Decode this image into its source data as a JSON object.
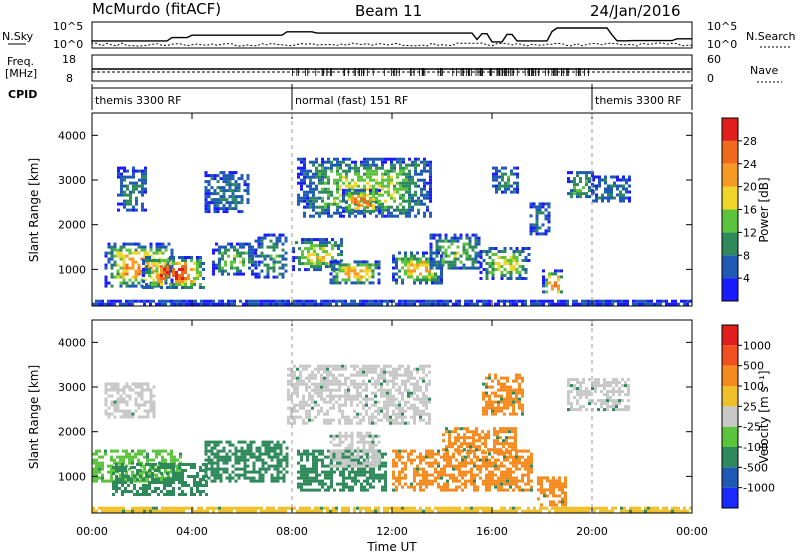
{
  "header": {
    "station": "McMurdo (fitACF)",
    "beam": "Beam 11",
    "date": "24/Jan/2016"
  },
  "labels": {
    "nsky": "N.Sky",
    "nsearch": "N.Search",
    "freq_line1": "Freq.",
    "freq_line2": "[MHz]",
    "nave": "Nave",
    "cpid": "CPID",
    "xlabel": "Time UT",
    "ylabel": "Slant Range [km]",
    "power_title": "Power [dB]",
    "velocity_title": "Velocity [m s⁻¹]"
  },
  "noise_axis": {
    "left": [
      "10^5",
      "10^0"
    ],
    "right": [
      "10^5",
      "10^0"
    ]
  },
  "freq_axis": {
    "left": [
      "18",
      "8"
    ],
    "right": [
      "60",
      "0"
    ]
  },
  "cpid_segments": [
    {
      "label": "themis 3300 RF",
      "start": 0,
      "end": 8
    },
    {
      "label": "normal (fast) 151 RF",
      "start": 8,
      "end": 20
    },
    {
      "label": "themis 3300 RF",
      "start": 20,
      "end": 24
    }
  ],
  "chart_data": [
    {
      "type": "heatmap",
      "quantity": "Power",
      "xlabel": "Time UT",
      "ylabel": "Slant Range [km]",
      "xlim": [
        0,
        24
      ],
      "ylim": [
        180,
        4500
      ],
      "x_ticks": [
        "00:00",
        "04:00",
        "08:00",
        "12:00",
        "16:00",
        "20:00",
        "00:00"
      ],
      "x_tick_values": [
        0,
        4,
        8,
        12,
        16,
        20,
        24
      ],
      "y_ticks": [
        1000,
        2000,
        3000,
        4000
      ],
      "colorbar": {
        "title": "Power [dB]",
        "range": [
          0,
          32
        ],
        "ticks": [
          "4",
          "8",
          "12",
          "16",
          "20",
          "24",
          "28"
        ],
        "colors": [
          "#1a1aff",
          "#1e5ab4",
          "#2e8a5a",
          "#5cc43c",
          "#f0d62a",
          "#f59a22",
          "#f06a1e",
          "#e01e1e"
        ]
      },
      "regions": [
        {
          "t": [
            0.5,
            3.2
          ],
          "r": [
            600,
            1600
          ],
          "v": 22
        },
        {
          "t": [
            2.0,
            4.5
          ],
          "r": [
            600,
            1300
          ],
          "v": 27
        },
        {
          "t": [
            4.8,
            6.5
          ],
          "r": [
            900,
            1600
          ],
          "v": 14
        },
        {
          "t": [
            6.5,
            7.8
          ],
          "r": [
            800,
            1800
          ],
          "v": 10
        },
        {
          "t": [
            1.0,
            2.2
          ],
          "r": [
            2300,
            3300
          ],
          "v": 9
        },
        {
          "t": [
            4.5,
            6.2
          ],
          "r": [
            2300,
            3200
          ],
          "v": 8
        },
        {
          "t": [
            8.0,
            10.0
          ],
          "r": [
            1000,
            1700
          ],
          "v": 18
        },
        {
          "t": [
            9.5,
            11.5
          ],
          "r": [
            700,
            1200
          ],
          "v": 21
        },
        {
          "t": [
            8.2,
            13.5
          ],
          "r": [
            2200,
            3500
          ],
          "v": 15
        },
        {
          "t": [
            10.0,
            11.5
          ],
          "r": [
            2300,
            2800
          ],
          "v": 25
        },
        {
          "t": [
            12.0,
            14.0
          ],
          "r": [
            700,
            1400
          ],
          "v": 19
        },
        {
          "t": [
            13.5,
            15.5
          ],
          "r": [
            1000,
            1800
          ],
          "v": 14
        },
        {
          "t": [
            15.5,
            17.5
          ],
          "r": [
            800,
            1500
          ],
          "v": 16
        },
        {
          "t": [
            16.0,
            17.0
          ],
          "r": [
            2700,
            3300
          ],
          "v": 10
        },
        {
          "t": [
            17.5,
            18.3
          ],
          "r": [
            1800,
            2500
          ],
          "v": 9
        },
        {
          "t": [
            18.0,
            18.8
          ],
          "r": [
            400,
            1000
          ],
          "v": 25
        },
        {
          "t": [
            19.0,
            20.0
          ],
          "r": [
            2600,
            3200
          ],
          "v": 14
        },
        {
          "t": [
            20.0,
            21.5
          ],
          "r": [
            2500,
            3100
          ],
          "v": 8
        },
        {
          "t": [
            0.0,
            24.0
          ],
          "r": [
            200,
            320
          ],
          "v": 5
        }
      ]
    },
    {
      "type": "heatmap",
      "quantity": "Velocity",
      "xlabel": "Time UT",
      "ylabel": "Slant Range [km]",
      "xlim": [
        0,
        24
      ],
      "ylim": [
        180,
        4500
      ],
      "x_ticks": [
        "00:00",
        "04:00",
        "08:00",
        "12:00",
        "16:00",
        "20:00",
        "00:00"
      ],
      "x_tick_values": [
        0,
        4,
        8,
        12,
        16,
        20,
        24
      ],
      "y_ticks": [
        1000,
        2000,
        3000,
        4000
      ],
      "colorbar": {
        "title": "Velocity [m s⁻¹]",
        "ticks": [
          "1000",
          "500",
          "100",
          "25",
          "-25",
          "-100",
          "-500",
          "-1000"
        ],
        "colors": [
          "#1a2aff",
          "#1e5ab4",
          "#2e8a5a",
          "#5cc43c",
          "#c8c8c8",
          "#f0c02a",
          "#f58a1e",
          "#f0501e",
          "#e01e1e"
        ]
      },
      "regions": [
        {
          "t": [
            0.0,
            3.5
          ],
          "r": [
            900,
            1600
          ],
          "v": "green"
        },
        {
          "t": [
            0.8,
            4.6
          ],
          "r": [
            600,
            1300
          ],
          "v": "darkgreen"
        },
        {
          "t": [
            4.5,
            7.8
          ],
          "r": [
            900,
            1800
          ],
          "v": "darkgreen"
        },
        {
          "t": [
            0.5,
            2.5
          ],
          "r": [
            2300,
            3100
          ],
          "v": "grey"
        },
        {
          "t": [
            7.8,
            13.5
          ],
          "r": [
            2200,
            3500
          ],
          "v": "grey"
        },
        {
          "t": [
            8.2,
            11.8
          ],
          "r": [
            700,
            1600
          ],
          "v": "darkgreen"
        },
        {
          "t": [
            9.5,
            11.5
          ],
          "r": [
            1200,
            2000
          ],
          "v": "grey"
        },
        {
          "t": [
            12.0,
            17.6
          ],
          "r": [
            700,
            1600
          ],
          "v": "orange"
        },
        {
          "t": [
            14.0,
            17.0
          ],
          "r": [
            1500,
            2100
          ],
          "v": "orange"
        },
        {
          "t": [
            15.6,
            17.2
          ],
          "r": [
            2400,
            3300
          ],
          "v": "orange"
        },
        {
          "t": [
            17.8,
            19.0
          ],
          "r": [
            350,
            1000
          ],
          "v": "orange"
        },
        {
          "t": [
            19.0,
            21.5
          ],
          "r": [
            2500,
            3200
          ],
          "v": "grey"
        },
        {
          "t": [
            0.0,
            24.0
          ],
          "r": [
            200,
            320
          ],
          "v": "yellow"
        }
      ]
    }
  ]
}
